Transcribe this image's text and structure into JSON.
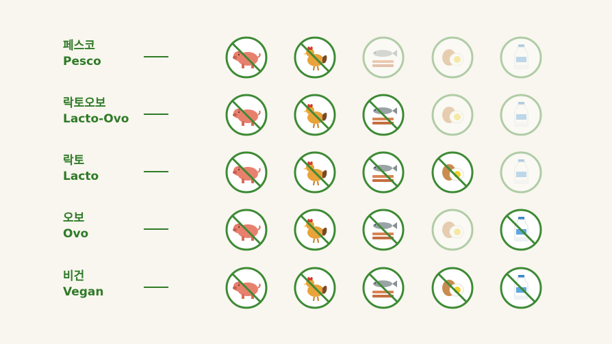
{
  "foods": [
    {
      "key": "pork",
      "icon": "pig-icon"
    },
    {
      "key": "poultry",
      "icon": "chicken-icon"
    },
    {
      "key": "fish",
      "icon": "fish-icon"
    },
    {
      "key": "egg",
      "icon": "egg-icon"
    },
    {
      "key": "dairy",
      "icon": "milk-bottle-icon"
    }
  ],
  "diets": [
    {
      "ko": "페스코",
      "en": "Pesco",
      "excluded": [
        true,
        true,
        false,
        false,
        false
      ]
    },
    {
      "ko": "락토오보",
      "en": "Lacto-Ovo",
      "excluded": [
        true,
        true,
        true,
        false,
        false
      ]
    },
    {
      "ko": "락토",
      "en": "Lacto",
      "excluded": [
        true,
        true,
        true,
        true,
        false
      ]
    },
    {
      "ko": "오보",
      "en": "Ovo",
      "excluded": [
        true,
        true,
        true,
        false,
        true
      ]
    },
    {
      "ko": "비건",
      "en": "Vegan",
      "excluded": [
        true,
        true,
        true,
        true,
        true
      ]
    }
  ],
  "colors": {
    "background": "#f8f6ee",
    "accent": "#2f7a28",
    "ring": "#3d8a34"
  }
}
